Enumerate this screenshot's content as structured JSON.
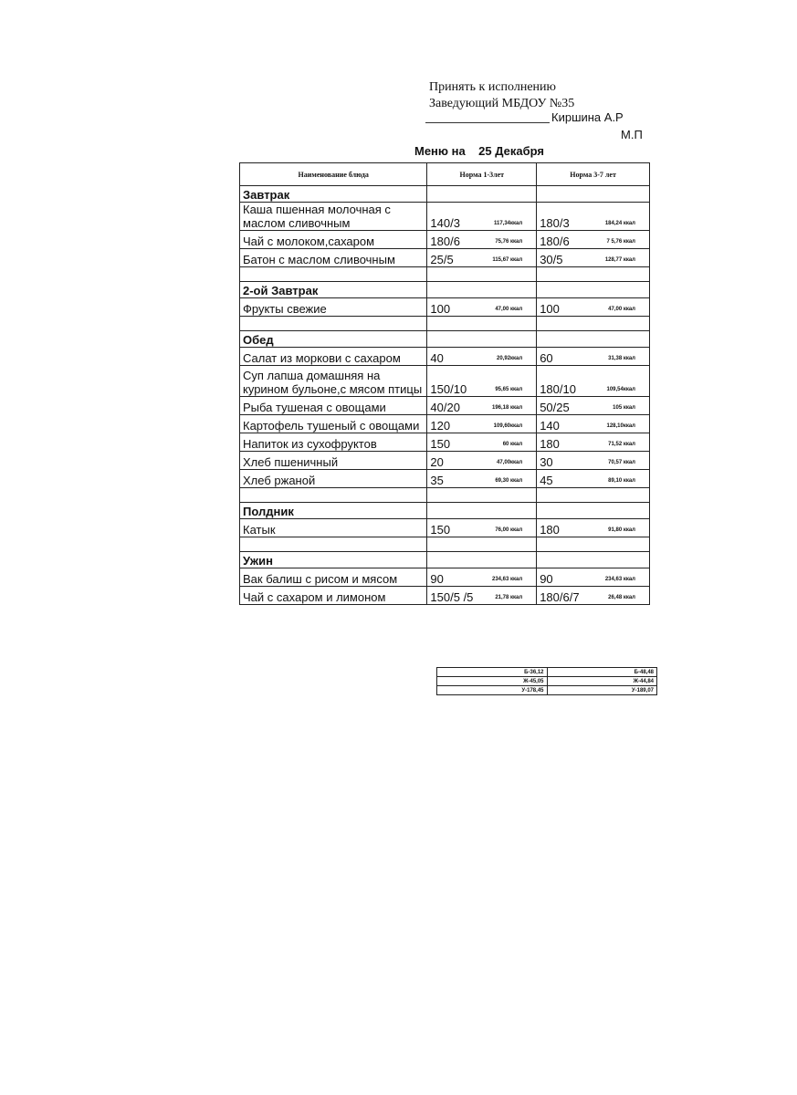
{
  "header": {
    "approve": "Принять к исполнению",
    "position": "Заведующий МБДОУ №35",
    "signer": "Киршина А.Р",
    "stamp": "М.П"
  },
  "title": {
    "label": "Меню на",
    "date": "25 Декабря"
  },
  "table": {
    "columns": [
      "Наименование блюда",
      "Норма 1-3лет",
      "Норма 3-7 лет"
    ],
    "rows": [
      {
        "section": "Завтрак"
      },
      {
        "name": "Каша пшенная молочная с маслом сливочным",
        "n1": "140/3",
        "k1": "117,34ккал",
        "n2": "180/3",
        "k2": "184,24 ккал"
      },
      {
        "name": "Чай  с молоком,сахаром",
        "n1": "180/6",
        "k1": "75,76 ккал",
        "n2": "180/6",
        "k2": "7   5,76 ккал"
      },
      {
        "name": "Батон с  маслом сливочным",
        "n1": "25/5",
        "k1": "115,67 ккал",
        "n2": "30/5",
        "k2": "128,77 ккал"
      },
      null,
      {
        "section": "2-ой Завтрак"
      },
      {
        "name": "Фрукты свежие",
        "n1": "100",
        "k1": "47,00 ккал",
        "n2": "100",
        "k2": "47,00 ккал"
      },
      null,
      {
        "section": "Обед"
      },
      {
        "name": "Салат из моркови с сахаром",
        "n1": "40",
        "k1": "20,92ккал",
        "n2": "60",
        "k2": "31,38 ккал"
      },
      {
        "name": "Суп лапша домашняя на курином бульоне,с мясом птицы",
        "n1": "150/10",
        "k1": "95,65 ккал",
        "n2": "180/10",
        "k2": "109,54ккал"
      },
      {
        "name": "Рыба тушеная с овощами",
        "n1": "40/20",
        "k1": "196,18 ккал",
        "n2": "50/25",
        "k2": "105  ккал"
      },
      {
        "name": "Картофель тушеный с овощами",
        "n1": "120",
        "k1": "109,60ккал",
        "n2": "140",
        "k2": "128,10ккал"
      },
      {
        "name": "Напиток из сухофруктов",
        "n1": "150",
        "k1": "60 ккал",
        "n2": "180",
        "k2": "71,52 ккал"
      },
      {
        "name": "Хлеб пшеничный",
        "n1": "20",
        "k1": "47,00ккал",
        "n2": "30",
        "k2": "70,57 ккал"
      },
      {
        "name": "Хлеб ржаной",
        "n1": "35",
        "k1": "69,30 ккал",
        "n2": "45",
        "k2": "89,10 ккал"
      },
      null,
      {
        "section": "Полдник"
      },
      {
        "name": "Катык",
        "n1": "150",
        "k1": "76,00 ккал",
        "n2": "180",
        "k2": "91,80 ккал"
      },
      null,
      {
        "section": "Ужин"
      },
      {
        "name": "Вак балиш с рисом и мясом",
        "n1": "90",
        "k1": "234,63 ккал",
        "n2": "90",
        "k2": "234,63 ккал"
      },
      {
        "name": "Чай с сахаром  и лимоном",
        "n1": "150/5 /5",
        "k1": "21,78 ккал",
        "n2": "180/6/7",
        "k2": "26,48 ккал"
      }
    ],
    "totals": [
      [
        "Б-36,12",
        "Б-48,48"
      ],
      [
        "Ж-45,05",
        "Ж-44,84"
      ],
      [
        "У-178,45",
        "У-189,07"
      ]
    ]
  }
}
